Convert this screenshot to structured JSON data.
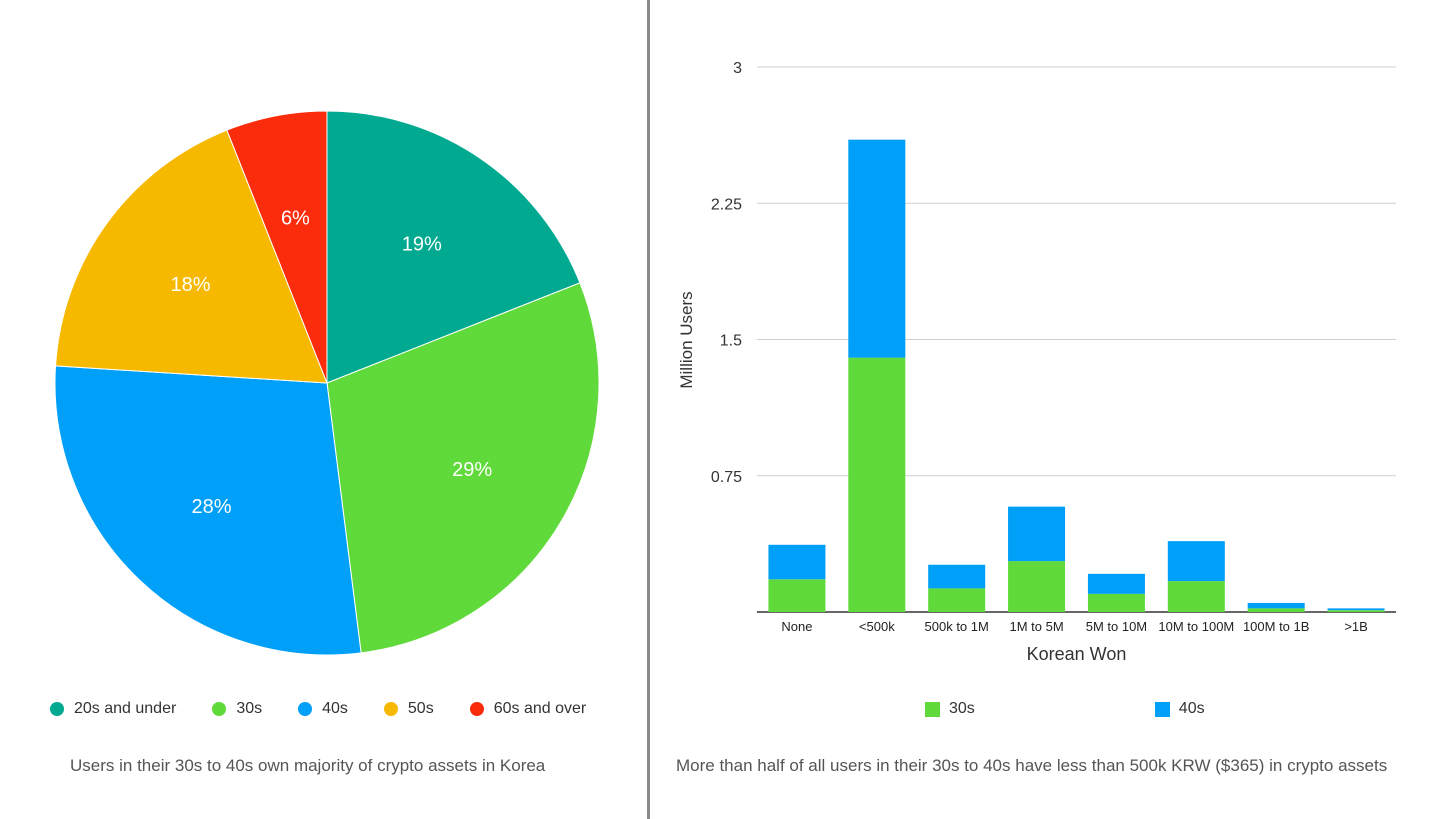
{
  "chart_data": [
    {
      "type": "pie",
      "title": "",
      "categories": [
        "20s and under",
        "30s",
        "40s",
        "50s",
        "60s and over"
      ],
      "values": [
        19,
        29,
        28,
        18,
        6
      ],
      "labels": [
        "19%",
        "29%",
        "28%",
        "18%",
        "6%"
      ],
      "colors": [
        "#00a98f",
        "#5fda3a",
        "#009ff8",
        "#f6b900",
        "#fa2c0b"
      ],
      "legend_position": "bottom",
      "caption": "Users in their 30s to 40s own majority of crypto assets in Korea"
    },
    {
      "type": "bar",
      "stacked": true,
      "categories": [
        "None",
        "<500k",
        "500k to 1M",
        "1M to 5M",
        "5M to 10M",
        "10M to 100M",
        "100M to 1B",
        ">1B"
      ],
      "series": [
        {
          "name": "30s",
          "color": "#5fda3a",
          "values": [
            0.18,
            1.4,
            0.13,
            0.28,
            0.1,
            0.17,
            0.02,
            0.01
          ]
        },
        {
          "name": "40s",
          "color": "#009ff8",
          "values": [
            0.19,
            1.2,
            0.13,
            0.3,
            0.11,
            0.22,
            0.03,
            0.01
          ]
        }
      ],
      "xlabel": "Korean Won",
      "ylabel": "Million Users",
      "ylim": [
        0,
        3
      ],
      "yticks": [
        "0.75",
        "1.5",
        "2.25",
        "3"
      ],
      "grid": true,
      "legend_position": "bottom",
      "caption": "More than half of all users in their 30s to 40s have less than 500k KRW ($365) in crypto assets"
    }
  ]
}
